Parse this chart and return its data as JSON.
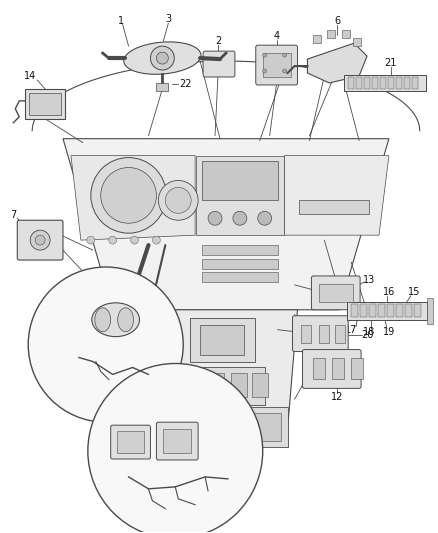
{
  "bg_color": "#ffffff",
  "lc": "#4a4a4a",
  "fig_w": 4.38,
  "fig_h": 5.33,
  "dpi": 100
}
